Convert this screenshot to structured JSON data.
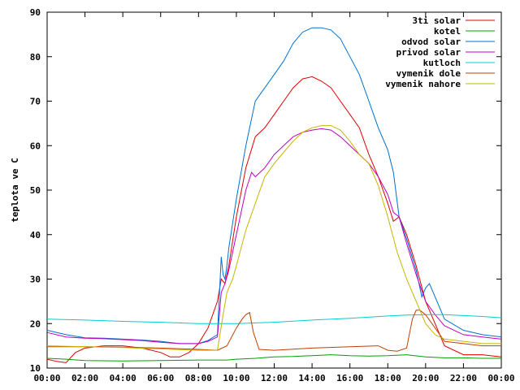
{
  "chart_data": {
    "type": "line",
    "title": "",
    "xlabel": "",
    "ylabel": "teplota ve C",
    "xlim": [
      0,
      24
    ],
    "ylim": [
      10,
      90
    ],
    "x_ticks": [
      "00:00",
      "02:00",
      "04:00",
      "06:00",
      "08:00",
      "10:00",
      "12:00",
      "14:00",
      "16:00",
      "18:00",
      "20:00",
      "22:00",
      "00:00"
    ],
    "y_ticks": [
      "10",
      "20",
      "30",
      "40",
      "50",
      "60",
      "70",
      "80",
      "90"
    ],
    "grid": false,
    "legend_position": "top-right",
    "series": [
      {
        "name": "3ti solar",
        "color": "#e00000",
        "x": [
          0,
          0.5,
          1,
          1.5,
          2,
          3,
          4,
          5,
          6,
          6.5,
          7,
          7.5,
          8,
          8.5,
          9,
          9.2,
          9.4,
          9.6,
          10,
          10.5,
          11,
          11.5,
          12,
          12.5,
          13,
          13.5,
          14,
          14.5,
          15,
          15.5,
          16,
          16.5,
          17,
          17.5,
          18,
          18.3,
          18.6,
          19,
          19.5,
          20,
          20.5,
          21,
          22,
          23,
          24
        ],
        "y": [
          12,
          11.5,
          11.2,
          13.5,
          14.5,
          15,
          15,
          14.5,
          13.5,
          12.5,
          12.5,
          13.5,
          15.5,
          19,
          25,
          30,
          29,
          33,
          44,
          55,
          62,
          64,
          67,
          70,
          73,
          75,
          75.5,
          74.5,
          73,
          70,
          67,
          64,
          58,
          53,
          47,
          43,
          44,
          40,
          33,
          25,
          20,
          15,
          13,
          13,
          12.5
        ]
      },
      {
        "name": "kotel",
        "color": "#00a000",
        "x": [
          0,
          1,
          2,
          4,
          6,
          8,
          9.5,
          10,
          11,
          12,
          13,
          14,
          15,
          16,
          17,
          18,
          19,
          20,
          21,
          22,
          23,
          24
        ],
        "y": [
          12.2,
          12,
          11.7,
          11.6,
          11.7,
          11.8,
          11.8,
          12,
          12.2,
          12.5,
          12.6,
          12.8,
          13,
          12.8,
          12.7,
          12.8,
          13,
          12.5,
          12.3,
          12.3,
          12.2,
          12.2
        ]
      },
      {
        "name": "odvod solar",
        "color": "#0070d0",
        "x": [
          0,
          1,
          2,
          3,
          4,
          5,
          6,
          7,
          8,
          8.5,
          9,
          9.2,
          9.3,
          9.4,
          9.5,
          9.6,
          10,
          10.5,
          11,
          11.5,
          12,
          12.5,
          13,
          13.5,
          14,
          14.5,
          15,
          15.5,
          16,
          16.5,
          17,
          17.5,
          18,
          18.3,
          18.6,
          19,
          19.5,
          19.8,
          20,
          20.2,
          20.5,
          21,
          22,
          23,
          24
        ],
        "y": [
          18.5,
          17.5,
          16.8,
          16.7,
          16.5,
          16.3,
          16,
          15.5,
          15.5,
          16.2,
          17.5,
          35,
          31,
          30,
          33,
          37,
          48,
          60,
          70,
          73,
          76,
          79,
          83,
          85.5,
          86.5,
          86.5,
          86,
          84,
          80,
          76,
          70,
          64,
          59,
          54,
          44,
          39,
          32,
          26,
          28,
          29,
          26,
          21,
          18.5,
          17.5,
          17
        ]
      },
      {
        "name": "privod solar",
        "color": "#c000c0",
        "x": [
          0,
          1,
          2,
          3,
          4,
          5,
          6,
          7,
          8,
          8.5,
          9,
          9.2,
          9.4,
          9.6,
          10,
          10.5,
          10.8,
          11,
          11.5,
          12,
          12.5,
          13,
          13.5,
          14,
          14.5,
          15,
          15.5,
          16,
          16.5,
          17,
          17.5,
          18,
          18.3,
          18.6,
          19,
          19.5,
          20,
          20.5,
          21,
          22,
          23,
          24
        ],
        "y": [
          18,
          17,
          16.7,
          16.6,
          16.4,
          16.2,
          15.8,
          15.5,
          15.5,
          16,
          17,
          27,
          29,
          32,
          40,
          50,
          54,
          53,
          55,
          58,
          60,
          62,
          63,
          63.5,
          63.8,
          63.5,
          62,
          60,
          58,
          56,
          53,
          49,
          45,
          44,
          38,
          31,
          25,
          22,
          19.5,
          17.5,
          17,
          16.5
        ]
      },
      {
        "name": "kutloch",
        "color": "#00d0d0",
        "x": [
          0,
          2,
          4,
          6,
          8,
          10,
          12,
          14,
          16,
          18,
          19,
          20,
          21,
          22,
          23,
          24
        ],
        "y": [
          21,
          20.8,
          20.5,
          20.3,
          20,
          20,
          20.3,
          20.8,
          21.2,
          21.7,
          21.9,
          22,
          22,
          21.8,
          21.6,
          21.3
        ]
      },
      {
        "name": "vymenik dole",
        "color": "#c04000",
        "x": [
          0,
          2,
          4,
          6,
          8,
          9,
          9.5,
          10,
          10.3,
          10.5,
          10.7,
          10.9,
          11.2,
          12,
          14,
          16,
          17.5,
          18,
          18.5,
          19,
          19.3,
          19.5,
          19.7,
          20,
          20.5,
          21,
          22,
          23,
          24
        ],
        "y": [
          14.8,
          14.8,
          14.7,
          14.5,
          14.2,
          14,
          15,
          19,
          21,
          22,
          22.5,
          18,
          14.2,
          14,
          14.5,
          14.8,
          15,
          14,
          13.8,
          14.5,
          21,
          23,
          23,
          22,
          19,
          16,
          15.5,
          15,
          15
        ]
      },
      {
        "name": "vymenik nahore",
        "color": "#c8b400",
        "x": [
          0,
          2,
          4,
          6,
          8,
          9,
          9.3,
          9.5,
          9.8,
          10,
          10.5,
          11,
          11.5,
          12,
          12.5,
          13,
          13.5,
          14,
          14.5,
          15,
          15.5,
          16,
          16.5,
          17,
          17.5,
          18,
          18.5,
          19,
          19.5,
          20,
          20.5,
          21,
          22,
          23,
          24
        ],
        "y": [
          15,
          14.8,
          14.6,
          14.3,
          14,
          14,
          22,
          27,
          30,
          33,
          41,
          47,
          53,
          56,
          58.5,
          61,
          63,
          64,
          64.5,
          64.5,
          63.5,
          61,
          58,
          56,
          51,
          44,
          36,
          30,
          25,
          20,
          17.5,
          16.5,
          16,
          15.5,
          15.5
        ]
      }
    ]
  }
}
